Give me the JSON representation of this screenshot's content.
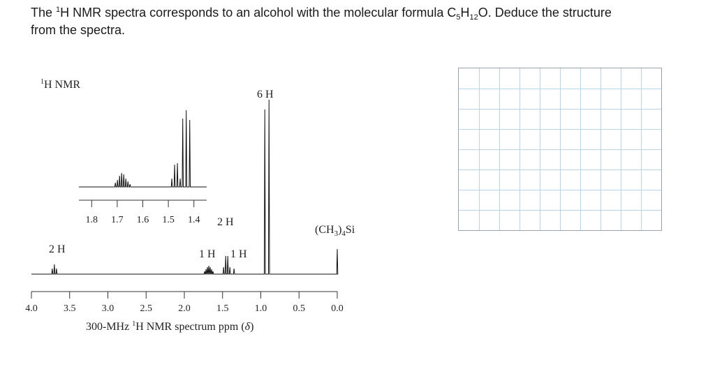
{
  "question": {
    "part1": "The ",
    "sup_h": "1",
    "part2": "H NMR spectra corresponds to an alcohol with the molecular formula C",
    "sub_c": "5",
    "part3": "H",
    "sub_h": "12",
    "part4": "O. Deduce the structure",
    "line2": "from the spectra."
  },
  "chart_data": {
    "type": "line",
    "title": "1H NMR",
    "xlabel": "300-MHz 1H NMR spectrum ppm (δ)",
    "x_ticks": [
      "4.0",
      "3.5",
      "3.0",
      "2.5",
      "2.0",
      "1.5",
      "1.0",
      "0.5",
      "0.0"
    ],
    "xlim": [
      4.0,
      0.0
    ],
    "x_reversed": true,
    "peaks": [
      {
        "shift": 3.7,
        "integration": "2 H",
        "multiplicity": "triplet"
      },
      {
        "shift": 1.68,
        "integration": "1 H",
        "multiplicity": "multiplet"
      },
      {
        "shift": 1.45,
        "integration": "2 H",
        "multiplicity": "quartet"
      },
      {
        "shift": 1.35,
        "integration": "1 H",
        "multiplicity": "singlet (broad)"
      },
      {
        "shift": 0.92,
        "integration": "6 H",
        "multiplicity": "doublet"
      },
      {
        "shift": 0.0,
        "integration": "(CH3)4Si",
        "multiplicity": "reference"
      }
    ],
    "inset": {
      "x_ticks": [
        "1.8",
        "1.7",
        "1.6",
        "1.5",
        "1.4"
      ],
      "xlim": [
        1.85,
        1.35
      ]
    }
  },
  "labels": {
    "title_sup": "1",
    "title_text": "H NMR",
    "six_h": "6 H",
    "two_h_mid": "2 H",
    "one_h_a": "1 H",
    "one_h_b": "1 H",
    "two_h_left": "2 H",
    "tms_pre": "(CH",
    "tms_sub1": "3",
    "tms_mid": ")",
    "tms_sub2": "4",
    "tms_post": "Si",
    "xlabel_pre": "300-MHz ",
    "xlabel_sup": "1",
    "xlabel_post": "H NMR spectrum ppm (",
    "xlabel_delta": "δ",
    "xlabel_close": ")"
  },
  "answer_grid": {
    "columns": 10,
    "rows": 8
  }
}
